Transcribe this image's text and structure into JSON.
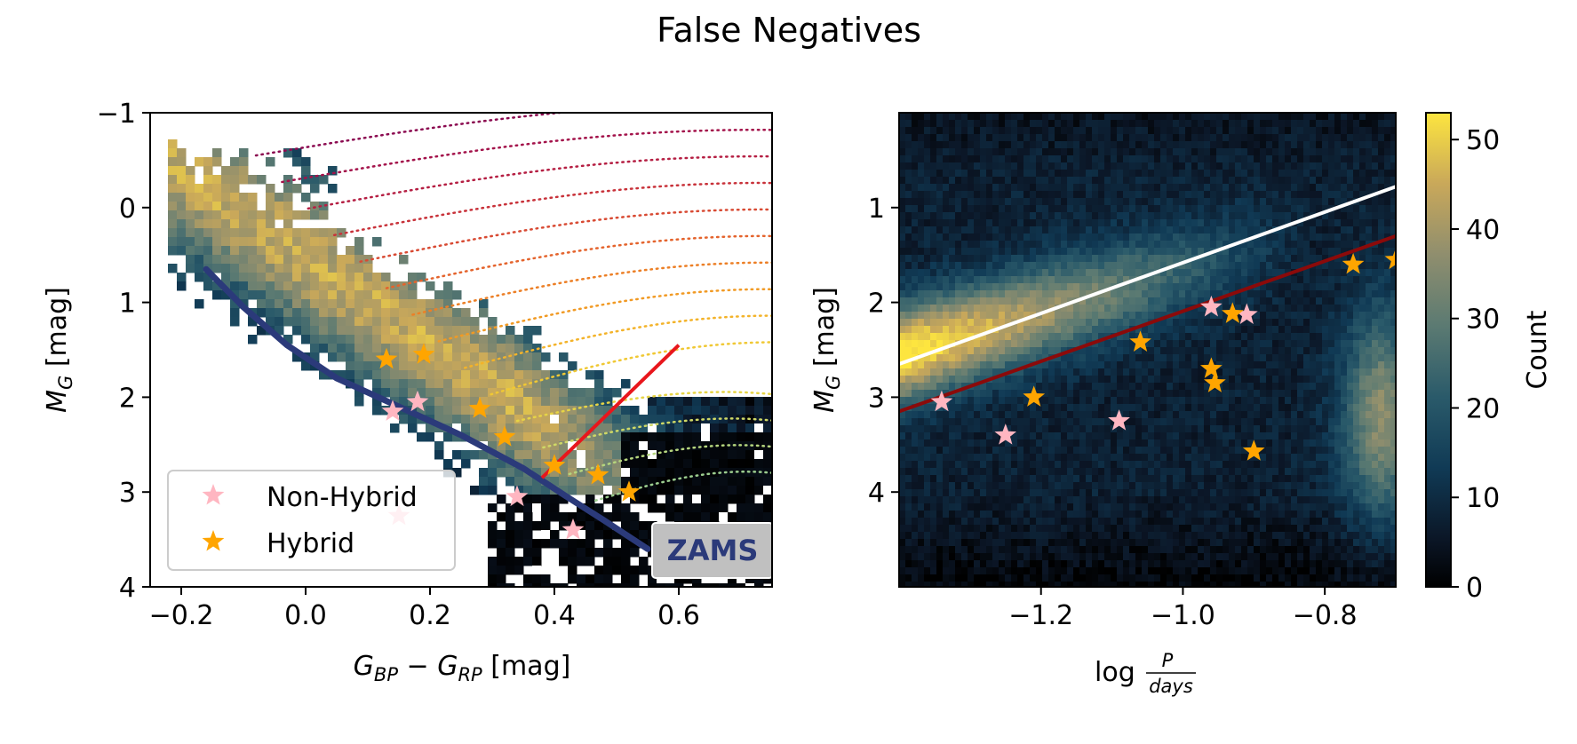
{
  "figure": {
    "suptitle": "False Negatives"
  },
  "chart_data": [
    {
      "type": "heatmap",
      "panel": "color-magnitude diagram",
      "xlabel": "G_BP − G_RP [mag]",
      "ylabel": "M_G [mag]",
      "xlim": [
        -0.25,
        0.75
      ],
      "ylim": [
        4,
        -1
      ],
      "y_inverted": true,
      "xticks": [
        -0.2,
        0.0,
        0.2,
        0.4,
        0.6
      ],
      "xtick_labels": [
        "−0.2",
        "0.0",
        "0.2",
        "0.4",
        "0.6"
      ],
      "yticks": [
        -1,
        0,
        1,
        2,
        3,
        4
      ],
      "ytick_labels": [
        "−1",
        "0",
        "1",
        "2",
        "3",
        "4"
      ],
      "legend": {
        "placement": "lower-left",
        "entries": [
          {
            "label": "Non-Hybrid",
            "color": "#ffb6c1",
            "marker": "star"
          },
          {
            "label": "Hybrid",
            "color": "#ffa500",
            "marker": "star"
          }
        ]
      },
      "annotation_box": {
        "text": "ZAMS",
        "text_color": "#2b3a7a",
        "background": "#c0c0c0"
      },
      "zams_line": {
        "color": "#2b3a7a",
        "x": [
          -0.16,
          -0.1,
          -0.03,
          0.05,
          0.15,
          0.25,
          0.35,
          0.42,
          0.48,
          0.55
        ],
        "y": [
          0.65,
          1.05,
          1.45,
          1.8,
          2.1,
          2.4,
          2.75,
          3.05,
          3.3,
          3.6
        ]
      },
      "red_line": {
        "color": "#e8161c",
        "x": [
          0.38,
          0.6
        ],
        "y": [
          2.85,
          1.45
        ]
      },
      "series": [
        {
          "name": "Non-Hybrid",
          "color": "#ffb6c1",
          "x": [
            0.14,
            0.18,
            0.34,
            0.43,
            0.15
          ],
          "y": [
            2.15,
            2.05,
            3.05,
            3.4,
            3.25
          ]
        },
        {
          "name": "Hybrid",
          "color": "#ffa500",
          "x": [
            0.13,
            0.19,
            0.28,
            0.32,
            0.4,
            0.47,
            0.52
          ],
          "y": [
            1.6,
            1.55,
            2.12,
            2.42,
            2.72,
            2.82,
            3.0
          ]
        }
      ]
    },
    {
      "type": "heatmap",
      "panel": "period-luminosity diagram",
      "xlabel_prefix": "log",
      "xlabel_numerator": "P",
      "xlabel_denominator": "days",
      "ylabel": "M_G [mag]",
      "xlim": [
        -1.4,
        -0.7
      ],
      "ylim": [
        5,
        0
      ],
      "y_inverted": true,
      "xticks": [
        -1.2,
        -1.0,
        -0.8
      ],
      "xtick_labels": [
        "−1.2",
        "−1.0",
        "−0.8"
      ],
      "yticks": [
        1,
        2,
        3,
        4
      ],
      "ytick_labels": [
        "1",
        "2",
        "3",
        "4"
      ],
      "colorbar": {
        "label": "Count",
        "range": [
          0,
          53
        ],
        "ticks": [
          0,
          10,
          20,
          30,
          40,
          50
        ],
        "tick_labels": [
          "0",
          "10",
          "20",
          "30",
          "40",
          "50"
        ]
      },
      "white_line": {
        "color": "#ffffff",
        "x": [
          -1.4,
          -0.7
        ],
        "y": [
          2.65,
          0.78
        ]
      },
      "darkred_line": {
        "color": "#8b0a0a",
        "x": [
          -1.4,
          -0.7
        ],
        "y": [
          3.15,
          1.3
        ]
      },
      "series": [
        {
          "name": "Non-Hybrid",
          "color": "#ffb6c1",
          "x": [
            -1.34,
            -1.25,
            -1.09,
            -0.96,
            -0.91
          ],
          "y": [
            3.05,
            3.4,
            3.25,
            2.05,
            2.13
          ]
        },
        {
          "name": "Hybrid",
          "color": "#ffa500",
          "x": [
            -1.21,
            -1.06,
            -0.96,
            -0.955,
            -0.93,
            -0.9,
            -0.76,
            -0.7
          ],
          "y": [
            3.0,
            2.42,
            2.7,
            2.85,
            2.12,
            3.57,
            1.6,
            1.55
          ]
        }
      ]
    }
  ]
}
